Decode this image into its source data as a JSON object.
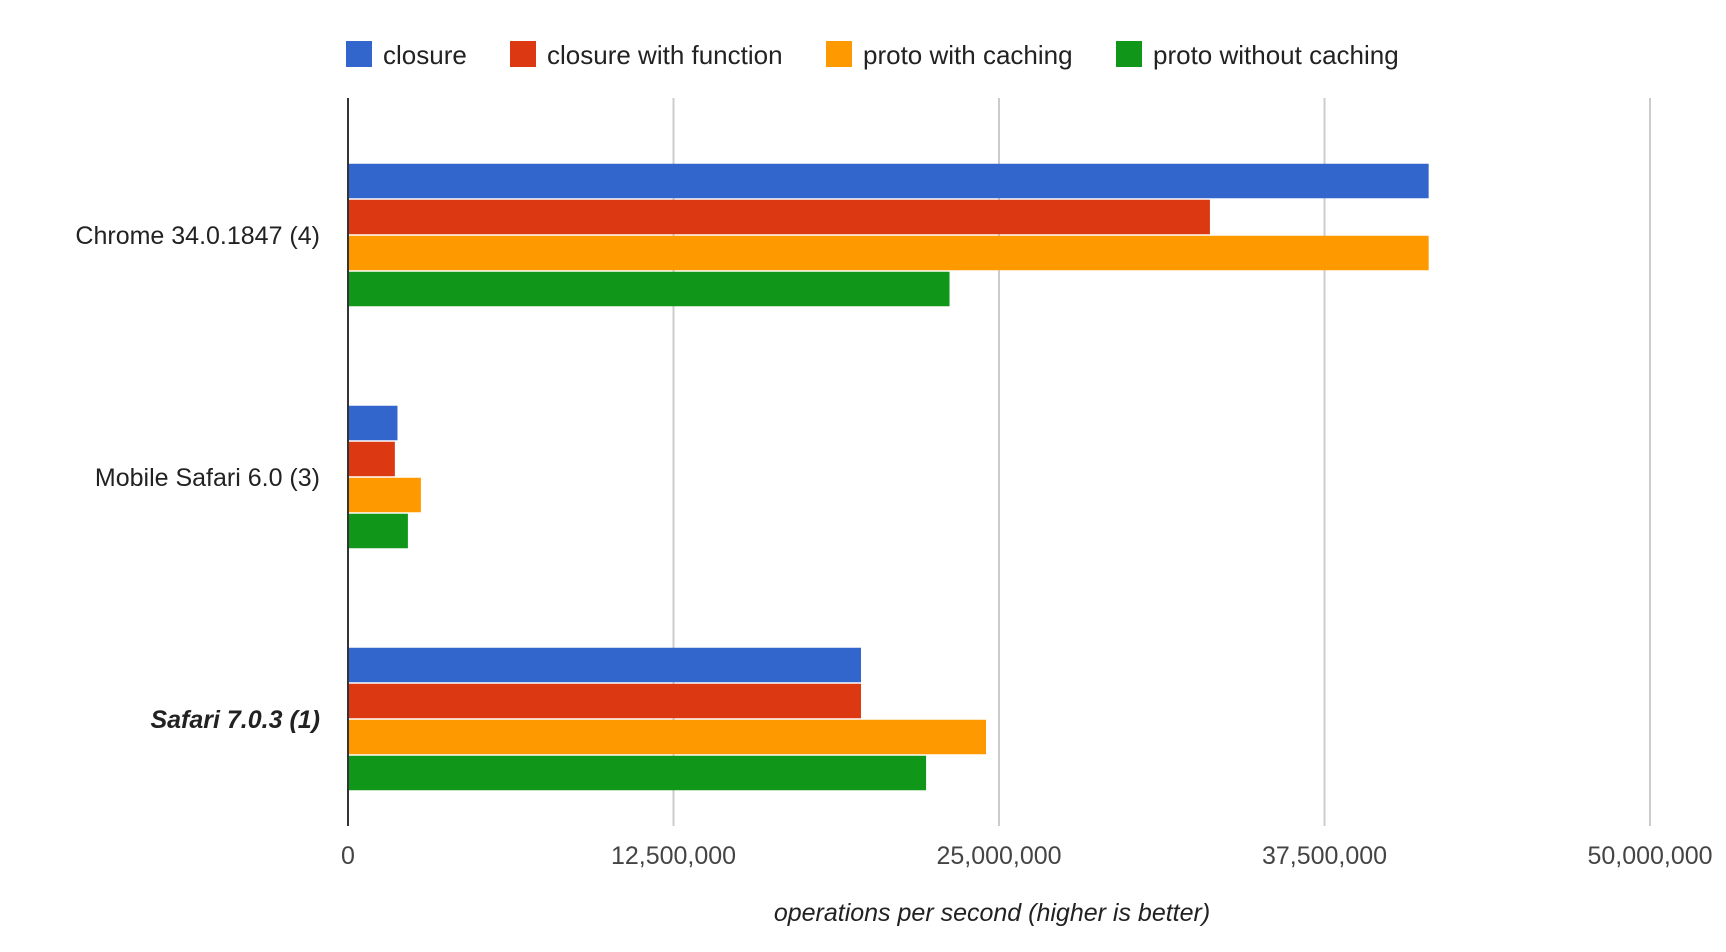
{
  "chart_data": {
    "type": "bar",
    "orientation": "horizontal",
    "categories": [
      "Chrome 34.0.1847 (4)",
      "Mobile Safari 6.0 (3)",
      "Safari 7.0.3 (1)"
    ],
    "emphasized_category": "Safari 7.0.3 (1)",
    "series": [
      {
        "name": "closure",
        "color": "#3366cc",
        "values": [
          41500000,
          1900000,
          19700000
        ]
      },
      {
        "name": "closure with function",
        "color": "#dc3912",
        "values": [
          33100000,
          1800000,
          19700000
        ]
      },
      {
        "name": "proto with caching",
        "color": "#ff9900",
        "values": [
          41500000,
          2800000,
          24500000
        ]
      },
      {
        "name": "proto without caching",
        "color": "#109618",
        "values": [
          23100000,
          2300000,
          22200000
        ]
      }
    ],
    "xlabel": "operations per second (higher is better)",
    "ylabel": "",
    "xlim": [
      0,
      50000000
    ],
    "x_ticks": [
      0,
      12500000,
      25000000,
      37500000,
      50000000
    ],
    "x_tick_labels": [
      "0",
      "12,500,000",
      "25,000,000",
      "37,500,000",
      "50,000,000"
    ],
    "grid": true,
    "legend_position": "top"
  }
}
